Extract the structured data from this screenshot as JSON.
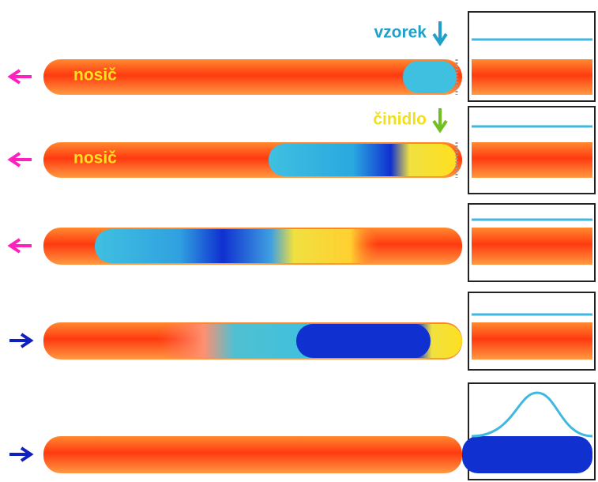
{
  "annotations": {
    "sample": "vzorek",
    "reagent": "činidlo"
  },
  "carrier_labels": [
    "nosič",
    "nosič"
  ]
}
